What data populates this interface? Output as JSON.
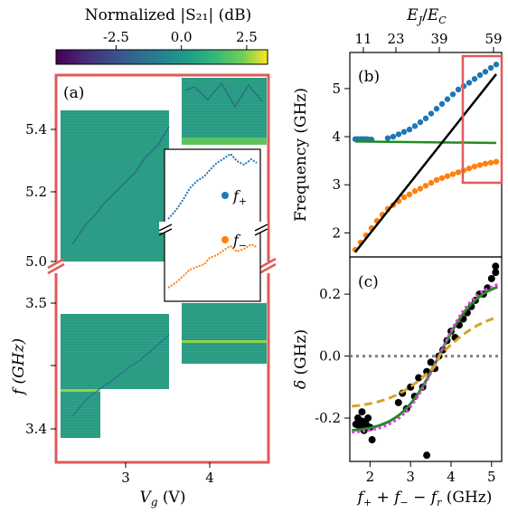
{
  "figure": {
    "colorbar": {
      "label": "Normalized |S₂₁| (dB)",
      "ticks": [
        "-2.5",
        "0.0",
        "2.5"
      ],
      "range": [
        -4.8,
        3.3
      ],
      "colormap": "viridis"
    },
    "panels": {
      "a": {
        "label": "(a)",
        "xlabel": "V_g (V)",
        "ylabel": "f (GHz)",
        "xticks": [
          "3",
          "4"
        ],
        "yticks_upper": [
          "5.0",
          "5.2",
          "5.4"
        ],
        "yticks_lower": [
          "3.4",
          "3.5"
        ],
        "frame_color": "#e05a5a",
        "inset": {
          "legend": [
            "f+",
            "f−"
          ]
        }
      },
      "b": {
        "label": "(b)",
        "ylabel": "Frequency (GHz)",
        "top_xlabel": "E_J / E_C",
        "top_xticks": [
          "11",
          "23",
          "39",
          "59"
        ],
        "yticks": [
          "2",
          "3",
          "4",
          "5"
        ],
        "highlight_color": "#e05a5a"
      },
      "c": {
        "label": "(c)",
        "ylabel": "δ (GHz)",
        "xlabel": "f+ + f− − f_r (GHz)",
        "xticks": [
          "2",
          "3",
          "4",
          "5"
        ],
        "yticks": [
          "-0.2",
          "0.0",
          "0.2"
        ]
      }
    }
  },
  "colors": {
    "f_plus": "#1f77b4",
    "f_minus": "#ff7f0e",
    "green": "#228b22",
    "black": "#000000",
    "magenta": "#e040e0",
    "gold": "#d4a52a",
    "gray": "#808080",
    "panel_a_frame": "#e05a5a"
  },
  "chart_data": [
    {
      "panel": "b",
      "type": "scatter",
      "x_axis": "E_J/E_C",
      "xlim": [
        6,
        62
      ],
      "ylim": [
        1.5,
        5.75
      ],
      "series": [
        {
          "name": "f+",
          "x": [
            8,
            9,
            10,
            11,
            12,
            13,
            14,
            20,
            22,
            24,
            26,
            28,
            30,
            32,
            34,
            36,
            38,
            40,
            42,
            44,
            46,
            48,
            50,
            52,
            54,
            56,
            58,
            60
          ],
          "y": [
            3.95,
            3.95,
            3.95,
            3.95,
            3.95,
            3.94,
            3.94,
            3.97,
            4.0,
            4.05,
            4.1,
            4.15,
            4.22,
            4.3,
            4.38,
            4.48,
            4.58,
            4.68,
            4.78,
            4.88,
            4.98,
            5.05,
            5.12,
            5.2,
            5.28,
            5.35,
            5.43,
            5.5
          ]
        },
        {
          "name": "f−",
          "x": [
            8,
            10,
            12,
            14,
            16,
            18,
            20,
            22,
            24,
            26,
            28,
            30,
            32,
            34,
            36,
            38,
            40,
            42,
            44,
            46,
            48,
            50,
            52,
            54,
            56,
            58,
            60
          ],
          "y": [
            1.65,
            1.8,
            1.95,
            2.1,
            2.25,
            2.38,
            2.5,
            2.58,
            2.66,
            2.74,
            2.8,
            2.87,
            2.92,
            2.98,
            3.04,
            3.1,
            3.14,
            3.18,
            3.22,
            3.26,
            3.3,
            3.34,
            3.38,
            3.41,
            3.44,
            3.46,
            3.48
          ]
        },
        {
          "name": "f_r",
          "x": [
            8,
            60
          ],
          "y": [
            3.9,
            3.87
          ]
        },
        {
          "name": "black",
          "x": [
            8,
            60
          ],
          "y": [
            1.6,
            5.3
          ]
        }
      ]
    },
    {
      "panel": "c",
      "type": "scatter",
      "xlim": [
        1.5,
        5.25
      ],
      "ylim": [
        -0.34,
        0.32
      ],
      "points": [
        [
          1.65,
          -0.22
        ],
        [
          1.7,
          -0.2
        ],
        [
          1.75,
          -0.23
        ],
        [
          1.8,
          -0.21
        ],
        [
          1.85,
          -0.24
        ],
        [
          1.9,
          -0.22
        ],
        [
          1.95,
          -0.2
        ],
        [
          2.0,
          -0.23
        ],
        [
          2.05,
          -0.27
        ],
        [
          1.8,
          -0.18
        ],
        [
          2.7,
          -0.15
        ],
        [
          2.8,
          -0.12
        ],
        [
          2.9,
          -0.17
        ],
        [
          3.0,
          -0.1
        ],
        [
          3.1,
          -0.13
        ],
        [
          3.2,
          -0.07
        ],
        [
          3.3,
          -0.1
        ],
        [
          3.4,
          -0.05
        ],
        [
          3.5,
          -0.02
        ],
        [
          3.6,
          -0.04
        ],
        [
          3.7,
          0.0
        ],
        [
          3.8,
          0.02
        ],
        [
          3.9,
          0.05
        ],
        [
          4.0,
          0.08
        ],
        [
          4.1,
          0.06
        ],
        [
          4.2,
          0.1
        ],
        [
          4.3,
          0.12
        ],
        [
          4.4,
          0.14
        ],
        [
          4.5,
          0.16
        ],
        [
          4.6,
          0.18
        ],
        [
          4.7,
          0.2
        ],
        [
          4.8,
          0.2
        ],
        [
          4.9,
          0.22
        ],
        [
          5.0,
          0.25
        ],
        [
          5.1,
          0.27
        ],
        [
          5.1,
          0.29
        ],
        [
          3.4,
          -0.32
        ]
      ]
    }
  ]
}
